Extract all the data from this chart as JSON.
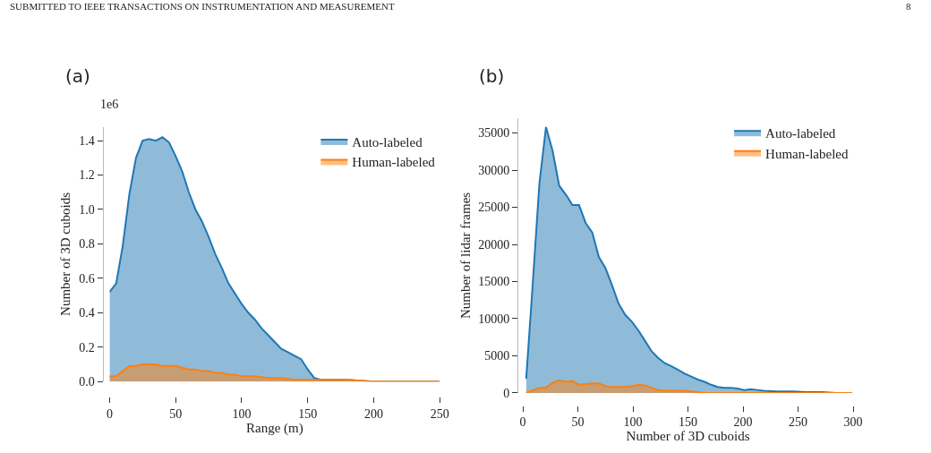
{
  "chart_data": [
    {
      "type": "area",
      "title": "(a)",
      "xlabel": "Range (m)",
      "ylabel": "Number of 3D cuboids",
      "annotations": [
        "1e6",
        "SUBMITTED TO IEEE TRANSACTIONS ON INSTRUMENTATION AND MEASUREMENT",
        "8"
      ],
      "legend": "top right",
      "xlim": [
        0,
        250
      ],
      "xticks": [
        0,
        50,
        100,
        150,
        200,
        250
      ],
      "ylim": [
        0,
        1.48
      ],
      "yticks": [
        {
          "value": 0,
          "label": "0.0"
        },
        0.2,
        0.4,
        0.6,
        0.8,
        {
          "value": 1,
          "label": "1.0"
        },
        1.2,
        1.4
      ],
      "series": [
        {
          "name": "Auto-labeled",
          "color": "#1f77b4",
          "x": [
            0,
            5,
            10,
            15,
            20,
            25,
            30,
            35,
            40,
            45,
            50,
            55,
            60,
            65,
            70,
            75,
            80,
            85,
            90,
            95,
            100,
            105,
            110,
            115,
            120,
            125,
            130,
            135,
            140,
            145,
            150,
            155,
            160,
            170,
            180,
            200,
            220,
            240,
            250
          ],
          "values": [
            0.52,
            0.57,
            0.79,
            1.09,
            1.3,
            1.4,
            1.41,
            1.4,
            1.42,
            1.39,
            1.31,
            1.22,
            1.1,
            1.0,
            0.93,
            0.84,
            0.74,
            0.66,
            0.57,
            0.51,
            0.45,
            0.4,
            0.36,
            0.31,
            0.27,
            0.23,
            0.19,
            0.17,
            0.15,
            0.13,
            0.07,
            0.02,
            0.01,
            0.01,
            0.01,
            0.0,
            0.0,
            0.0,
            0.0
          ]
        },
        {
          "name": "Human-labeled",
          "color": "#ff7f0e",
          "x": [
            0,
            5,
            10,
            15,
            20,
            25,
            30,
            35,
            40,
            45,
            50,
            55,
            60,
            65,
            70,
            75,
            80,
            85,
            90,
            95,
            100,
            110,
            120,
            130,
            140,
            150,
            160,
            180,
            200,
            220,
            240,
            250
          ],
          "values": [
            0.03,
            0.03,
            0.06,
            0.09,
            0.09,
            0.1,
            0.1,
            0.1,
            0.09,
            0.09,
            0.09,
            0.08,
            0.07,
            0.07,
            0.06,
            0.06,
            0.05,
            0.05,
            0.04,
            0.04,
            0.03,
            0.03,
            0.02,
            0.02,
            0.01,
            0.01,
            0.01,
            0.01,
            0.0,
            0.0,
            0.0,
            0.0
          ]
        }
      ]
    },
    {
      "type": "area",
      "title": "(b)",
      "xlabel": "Number of 3D cuboids",
      "ylabel": "Number of lidar frames",
      "legend": "top right",
      "xlim": [
        0,
        300
      ],
      "xticks": [
        0,
        50,
        100,
        150,
        200,
        250,
        300
      ],
      "ylim": [
        0,
        37000
      ],
      "yticks": [
        0,
        5000,
        10000,
        15000,
        20000,
        25000,
        30000,
        35000
      ],
      "series": [
        {
          "name": "Auto-labeled",
          "color": "#1f77b4",
          "x": [
            3,
            8,
            15,
            21,
            27,
            33,
            40,
            45,
            51,
            57,
            63,
            69,
            75,
            81,
            87,
            93,
            99,
            105,
            111,
            117,
            123,
            129,
            135,
            141,
            147,
            153,
            159,
            165,
            171,
            177,
            183,
            189,
            195,
            201,
            207,
            213,
            219,
            231,
            245,
            258,
            272,
            285,
            299
          ],
          "values": [
            1900,
            12600,
            28200,
            35800,
            32600,
            27900,
            26500,
            25300,
            25300,
            22900,
            21600,
            18300,
            16800,
            14500,
            12000,
            10500,
            9600,
            8400,
            7000,
            5600,
            4700,
            4000,
            3600,
            3100,
            2600,
            2200,
            1800,
            1500,
            1100,
            800,
            700,
            700,
            600,
            400,
            500,
            400,
            300,
            200,
            200,
            100,
            100,
            0,
            0
          ]
        },
        {
          "name": "Human-labeled",
          "color": "#ff7f0e",
          "x": [
            3,
            8,
            15,
            21,
            27,
            33,
            40,
            45,
            51,
            57,
            63,
            69,
            75,
            81,
            87,
            93,
            99,
            105,
            111,
            117,
            123,
            129,
            135,
            141,
            147,
            153,
            159,
            165,
            180,
            200,
            250,
            299
          ],
          "values": [
            0,
            300,
            700,
            700,
            1400,
            1700,
            1500,
            1600,
            1100,
            1200,
            1300,
            1300,
            900,
            800,
            800,
            800,
            900,
            1100,
            1000,
            700,
            400,
            300,
            300,
            300,
            300,
            200,
            100,
            0,
            0,
            0,
            0,
            0
          ]
        }
      ]
    }
  ]
}
